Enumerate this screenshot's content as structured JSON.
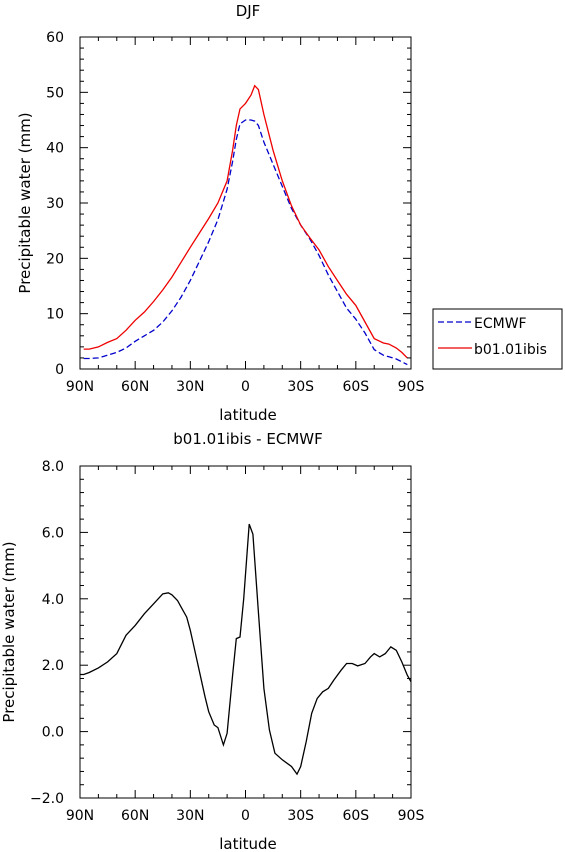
{
  "chart_data": [
    {
      "type": "line",
      "title": "DJF",
      "xlabel": "latitude",
      "ylabel": "Precipitable water (mm)",
      "xlim": [
        -90,
        90
      ],
      "ylim": [
        0,
        60
      ],
      "x_ticks": [
        -90,
        -60,
        -30,
        0,
        30,
        60,
        90
      ],
      "x_tick_labels": [
        "90N",
        "60N",
        "30N",
        "0",
        "30S",
        "60S",
        "90S"
      ],
      "y_ticks": [
        0,
        10,
        20,
        30,
        40,
        50,
        60
      ],
      "y_tick_labels": [
        "0",
        "10",
        "20",
        "30",
        "40",
        "50",
        "60"
      ],
      "legend_position": "right",
      "x": [
        -88,
        -85,
        -80,
        -75,
        -70,
        -65,
        -60,
        -55,
        -50,
        -45,
        -40,
        -35,
        -30,
        -25,
        -20,
        -15,
        -10,
        -7,
        -5,
        -3,
        0,
        3,
        5,
        7,
        10,
        15,
        20,
        25,
        30,
        35,
        40,
        45,
        50,
        55,
        60,
        65,
        70,
        75,
        78,
        82,
        85,
        88
      ],
      "series": [
        {
          "name": "ECMWF",
          "color": "#0000cc",
          "dash": "dashed",
          "values": [
            1.9,
            1.9,
            2.0,
            2.5,
            3.0,
            3.8,
            5.0,
            6.0,
            7.0,
            8.5,
            10.5,
            13.0,
            16.0,
            19.5,
            23.0,
            27.0,
            32.5,
            37.5,
            41.5,
            44.3,
            45.0,
            45.0,
            44.8,
            44.0,
            41.0,
            37.0,
            33.0,
            29.0,
            26.0,
            23.5,
            20.5,
            17.0,
            14.0,
            11.0,
            9.0,
            6.5,
            3.5,
            2.5,
            2.2,
            1.8,
            1.3,
            0.8
          ]
        },
        {
          "name": "b01.01ibis",
          "color": "#ee0000",
          "dash": "solid",
          "values": [
            3.6,
            3.6,
            4.0,
            4.8,
            5.5,
            7.0,
            8.8,
            10.3,
            12.2,
            14.3,
            16.6,
            19.3,
            22.0,
            24.6,
            27.2,
            30.0,
            34.0,
            39.5,
            44.0,
            47.0,
            48.0,
            49.5,
            51.2,
            50.5,
            46.0,
            39.5,
            34.0,
            29.5,
            26.0,
            23.7,
            21.5,
            18.5,
            16.0,
            13.5,
            11.5,
            8.5,
            5.5,
            4.7,
            4.5,
            3.8,
            3.0,
            2.0
          ]
        }
      ]
    },
    {
      "type": "line",
      "title": "b01.01ibis - ECMWF",
      "xlabel": "latitude",
      "ylabel": "Precipitable water (mm)",
      "xlim": [
        -90,
        90
      ],
      "ylim": [
        -2,
        8
      ],
      "x_ticks": [
        -90,
        -60,
        -30,
        0,
        30,
        60,
        90
      ],
      "x_tick_labels": [
        "90N",
        "60N",
        "30N",
        "0",
        "30S",
        "60S",
        "90S"
      ],
      "y_ticks": [
        -2,
        0,
        2,
        4,
        6,
        8
      ],
      "y_tick_labels": [
        "−2.0",
        "0.0",
        "2.0",
        "4.0",
        "6.0",
        "8.0"
      ],
      "x": [
        -90,
        -88,
        -85,
        -80,
        -75,
        -70,
        -65,
        -60,
        -55,
        -50,
        -45,
        -42,
        -40,
        -37,
        -35,
        -32,
        -30,
        -28,
        -25,
        -22,
        -20,
        -17,
        -15,
        -12,
        -10,
        -7,
        -5,
        -3,
        -1,
        2,
        4,
        7,
        10,
        13,
        16,
        20,
        25,
        28,
        30,
        33,
        36,
        39,
        42,
        45,
        48,
        52,
        55,
        58,
        61,
        65,
        68,
        70,
        73,
        76,
        79,
        82,
        85,
        88,
        90
      ],
      "series": [
        {
          "color": "#000000",
          "values": [
            1.72,
            1.72,
            1.78,
            1.92,
            2.1,
            2.35,
            2.9,
            3.2,
            3.55,
            3.85,
            4.15,
            4.18,
            4.12,
            3.95,
            3.75,
            3.45,
            3.05,
            2.55,
            1.8,
            1.05,
            0.6,
            0.2,
            0.12,
            -0.4,
            -0.05,
            1.7,
            2.8,
            2.85,
            4.0,
            6.25,
            5.95,
            3.6,
            1.3,
            0.05,
            -0.65,
            -0.85,
            -1.05,
            -1.28,
            -1.05,
            -0.3,
            0.55,
            1.0,
            1.2,
            1.3,
            1.55,
            1.85,
            2.05,
            2.05,
            1.98,
            2.05,
            2.25,
            2.35,
            2.25,
            2.35,
            2.55,
            2.45,
            2.1,
            1.7,
            1.5
          ]
        }
      ]
    }
  ]
}
